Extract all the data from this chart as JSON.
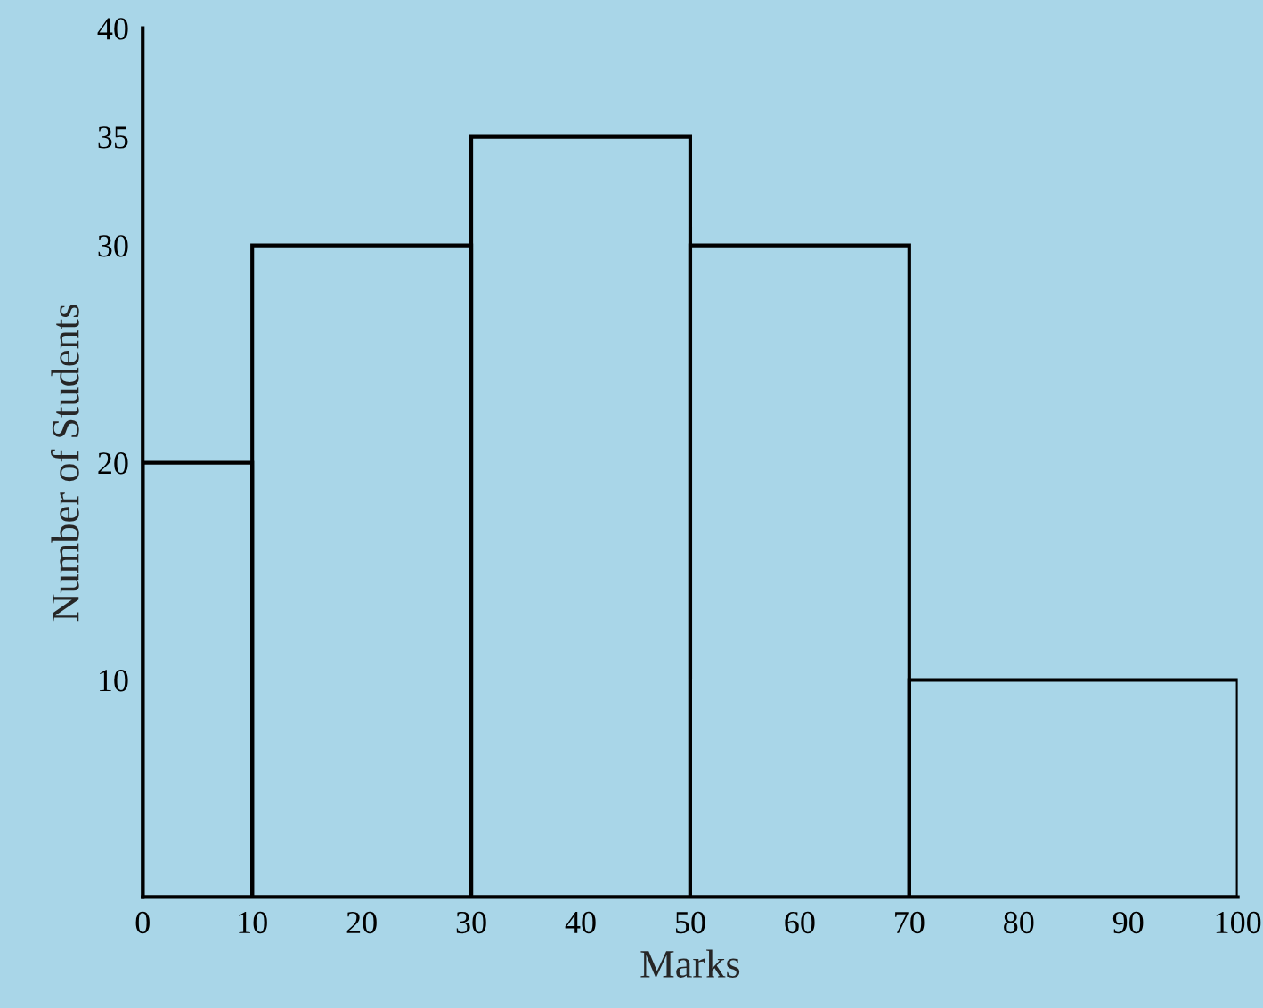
{
  "chart_data": {
    "type": "histogram",
    "xlabel": "Marks",
    "ylabel": "Number of Students",
    "bins": [
      0,
      10,
      30,
      50,
      70,
      100
    ],
    "values": [
      20,
      30,
      35,
      30,
      10
    ],
    "color": "#000000",
    "xlim": [
      0,
      100
    ],
    "ylim": [
      0,
      40
    ],
    "xticks": [
      0,
      10,
      20,
      30,
      40,
      50,
      60,
      70,
      80,
      90,
      100
    ],
    "yticks": [
      10,
      20,
      30,
      35,
      40
    ],
    "grid": false
  }
}
